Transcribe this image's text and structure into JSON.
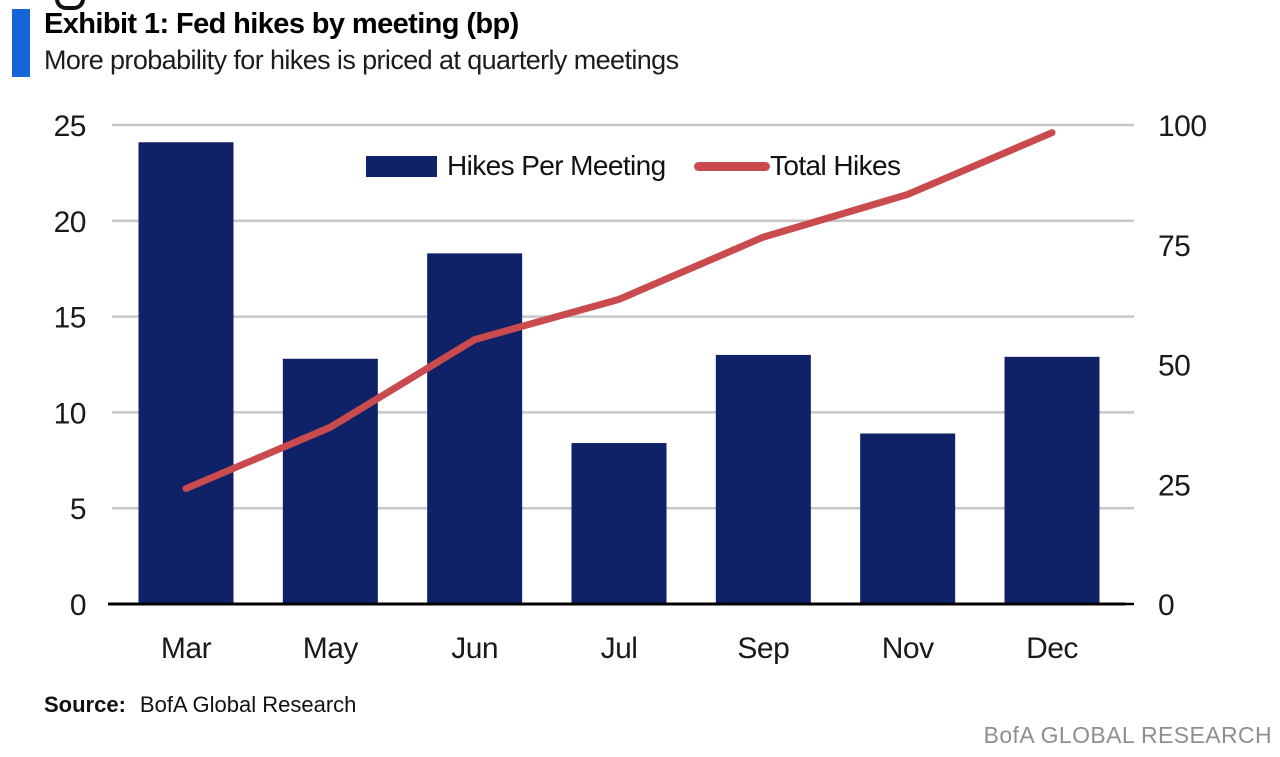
{
  "header": {
    "exhibit_title": "Exhibit 1: Fed hikes by meeting (bp)",
    "subtitle": "More probability for hikes is priced at quarterly meetings"
  },
  "legend": {
    "bar_label": "Hikes Per Meeting",
    "line_label": "Total Hikes"
  },
  "source": {
    "label": "Source:",
    "text": "BofA Global Research"
  },
  "footer": {
    "brand": "BofA GLOBAL RESEARCH"
  },
  "colors": {
    "bar": "#0f2167",
    "line": "#c94b4e",
    "accent_bar": "#1565d8",
    "gridline": "#c7c7c7",
    "axis": "#000000",
    "text": "#1a1a1a",
    "footer_text": "#8f8f8f"
  },
  "chart_data": {
    "type": "bar",
    "title": "Exhibit 1: Fed hikes by meeting (bp)",
    "subtitle": "More probability for hikes is priced at quarterly meetings",
    "categories": [
      "Mar",
      "May",
      "Jun",
      "Jul",
      "Sep",
      "Nov",
      "Dec"
    ],
    "series": [
      {
        "name": "Hikes Per Meeting",
        "type": "bar",
        "axis": "left",
        "values": [
          24.1,
          12.8,
          18.3,
          8.4,
          13.0,
          8.9,
          12.9
        ]
      },
      {
        "name": "Total Hikes",
        "type": "line",
        "axis": "right",
        "values": [
          24.1,
          36.9,
          55.2,
          63.6,
          76.6,
          85.5,
          98.4
        ]
      }
    ],
    "left_axis": {
      "range": [
        0,
        25
      ],
      "ticks": [
        0,
        5,
        10,
        15,
        20,
        25
      ]
    },
    "right_axis": {
      "range": [
        0,
        100
      ],
      "ticks": [
        0,
        25,
        50,
        75,
        100
      ]
    },
    "grid": true,
    "legend_position": "top-center",
    "xlabel": "",
    "ylabel_left": "",
    "ylabel_right": ""
  }
}
